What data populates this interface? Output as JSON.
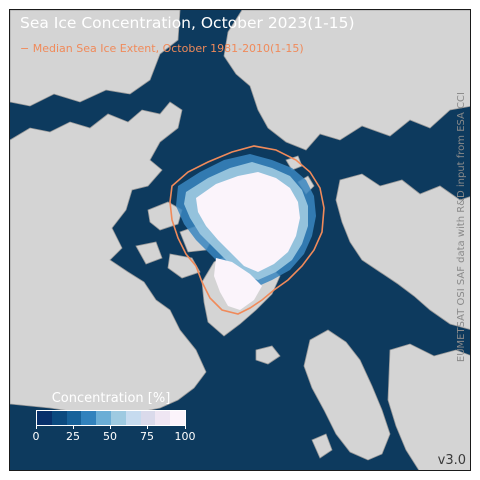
{
  "title": "Sea Ice Concentration, October 2023(1-15)",
  "median_legend": "− Median Sea Ice Extent, October 1981-2010(1-15)",
  "credit": "EUMETSAT OSI SAF data with R&D input from ESA CCI",
  "version": "v3.0",
  "colorbar": {
    "title": "Concentration [%]",
    "ticks": [
      "0",
      "25",
      "50",
      "75",
      "100"
    ],
    "colors": [
      "#08306b",
      "#0b4a7f",
      "#17629a",
      "#3182bd",
      "#6baed6",
      "#9ecae1",
      "#c6dbef",
      "#dadaeb",
      "#efe6f3",
      "#fcf4fb"
    ]
  },
  "colors": {
    "ocean": "#0d3a5e",
    "land": "#d4d4d4",
    "median_line": "#f08a5a",
    "ice": "#fbf4fb"
  }
}
